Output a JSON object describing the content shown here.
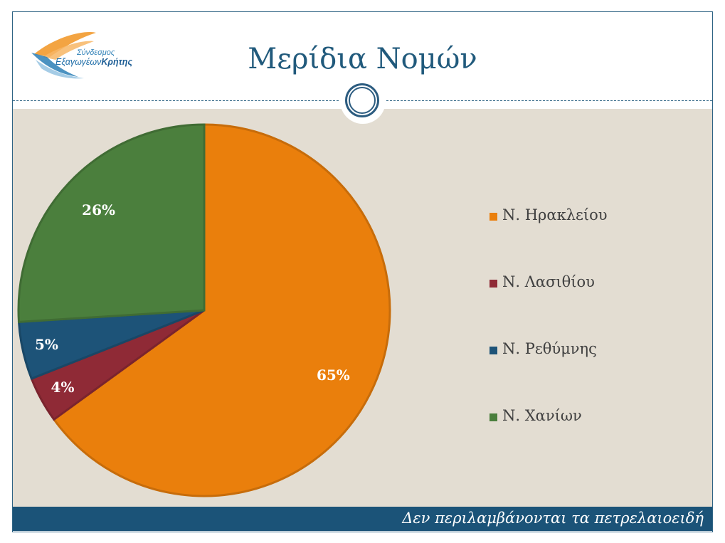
{
  "logo": {
    "line1": "Σύνδεσμος",
    "line2_a": "Εξαγωγέων",
    "line2_b": "Κρήτης"
  },
  "slide": {
    "title": "Μερίδια Νομών",
    "footer": "Δεν περιλαμβάνονται τα πετρελαιοειδή"
  },
  "colors": {
    "header_accent": "#215a7c",
    "content_bg": "#e3ddd2",
    "footer_bg": "#1b5378"
  },
  "chart_data": {
    "type": "pie",
    "categories": [
      "Ν. Ηρακλείου",
      "Ν. Λασιθίου",
      "Ν. Ρεθύμνης",
      "Ν. Χανίων"
    ],
    "values": [
      65,
      4,
      5,
      26
    ],
    "labels": [
      "65%",
      "4%",
      "5%",
      "26%"
    ],
    "colors": [
      "#ea7f0c",
      "#8f2a36",
      "#1d5378",
      "#4b7f3d"
    ],
    "legend_position": "right"
  }
}
